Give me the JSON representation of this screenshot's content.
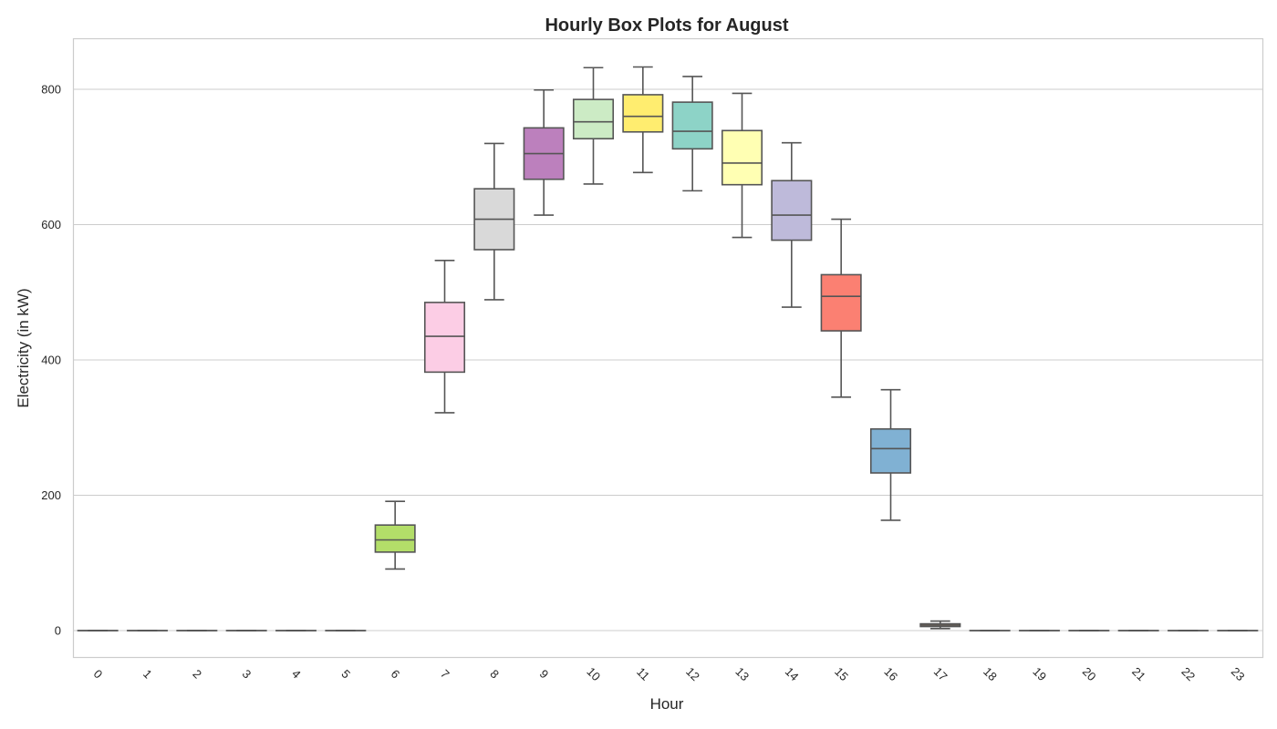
{
  "chart_data": {
    "type": "box",
    "title": "Hourly Box Plots for August",
    "xlabel": "Hour",
    "ylabel": "Electricity (in kW)",
    "ylim": [
      -40,
      875
    ],
    "yticks": [
      0,
      200,
      400,
      600,
      800
    ],
    "grid": "horizontal",
    "categories": [
      "0",
      "1",
      "2",
      "3",
      "4",
      "5",
      "6",
      "7",
      "8",
      "9",
      "10",
      "11",
      "12",
      "13",
      "14",
      "15",
      "16",
      "17",
      "18",
      "19",
      "20",
      "21",
      "22",
      "23"
    ],
    "boxes": [
      {
        "hour": "0",
        "whisker_low": 0,
        "q1": 0,
        "median": 0,
        "q3": 0,
        "whisker_high": 0,
        "color": "#8dd3c7"
      },
      {
        "hour": "1",
        "whisker_low": 0,
        "q1": 0,
        "median": 0,
        "q3": 0,
        "whisker_high": 0,
        "color": "#ffffb3"
      },
      {
        "hour": "2",
        "whisker_low": 0,
        "q1": 0,
        "median": 0,
        "q3": 0,
        "whisker_high": 0,
        "color": "#bebada"
      },
      {
        "hour": "3",
        "whisker_low": 0,
        "q1": 0,
        "median": 0,
        "q3": 0,
        "whisker_high": 0,
        "color": "#fb8072"
      },
      {
        "hour": "4",
        "whisker_low": 0,
        "q1": 0,
        "median": 0,
        "q3": 0,
        "whisker_high": 0,
        "color": "#80b1d3"
      },
      {
        "hour": "5",
        "whisker_low": 0,
        "q1": 0,
        "median": 0,
        "q3": 0,
        "whisker_high": 0,
        "color": "#fdb462"
      },
      {
        "hour": "6",
        "whisker_low": 91,
        "q1": 116,
        "median": 134,
        "q3": 156,
        "whisker_high": 191,
        "color": "#b3de69"
      },
      {
        "hour": "7",
        "whisker_low": 322,
        "q1": 382,
        "median": 435,
        "q3": 485,
        "whisker_high": 547,
        "color": "#fccde5"
      },
      {
        "hour": "8",
        "whisker_low": 489,
        "q1": 563,
        "median": 608,
        "q3": 653,
        "whisker_high": 720,
        "color": "#d9d9d9"
      },
      {
        "hour": "9",
        "whisker_low": 614,
        "q1": 667,
        "median": 705,
        "q3": 743,
        "whisker_high": 799,
        "color": "#bc80bd"
      },
      {
        "hour": "10",
        "whisker_low": 660,
        "q1": 727,
        "median": 752,
        "q3": 785,
        "whisker_high": 832,
        "color": "#ccebc5"
      },
      {
        "hour": "11",
        "whisker_low": 677,
        "q1": 737,
        "median": 760,
        "q3": 792,
        "whisker_high": 833,
        "color": "#ffed6f"
      },
      {
        "hour": "12",
        "whisker_low": 650,
        "q1": 712,
        "median": 738,
        "q3": 781,
        "whisker_high": 819,
        "color": "#8dd3c7"
      },
      {
        "hour": "13",
        "whisker_low": 581,
        "q1": 659,
        "median": 691,
        "q3": 739,
        "whisker_high": 794,
        "color": "#ffffb3"
      },
      {
        "hour": "14",
        "whisker_low": 478,
        "q1": 577,
        "median": 614,
        "q3": 665,
        "whisker_high": 721,
        "color": "#bebada"
      },
      {
        "hour": "15",
        "whisker_low": 345,
        "q1": 443,
        "median": 494,
        "q3": 526,
        "whisker_high": 608,
        "color": "#fb8072"
      },
      {
        "hour": "16",
        "whisker_low": 163,
        "q1": 233,
        "median": 269,
        "q3": 298,
        "whisker_high": 356,
        "color": "#80b1d3"
      },
      {
        "hour": "17",
        "whisker_low": 3,
        "q1": 6,
        "median": 8,
        "q3": 10,
        "whisker_high": 14,
        "color": "#fdb462"
      },
      {
        "hour": "18",
        "whisker_low": 0,
        "q1": 0,
        "median": 0,
        "q3": 0,
        "whisker_high": 0,
        "color": "#b3de69"
      },
      {
        "hour": "19",
        "whisker_low": 0,
        "q1": 0,
        "median": 0,
        "q3": 0,
        "whisker_high": 0,
        "color": "#fccde5"
      },
      {
        "hour": "20",
        "whisker_low": 0,
        "q1": 0,
        "median": 0,
        "q3": 0,
        "whisker_high": 0,
        "color": "#d9d9d9"
      },
      {
        "hour": "21",
        "whisker_low": 0,
        "q1": 0,
        "median": 0,
        "q3": 0,
        "whisker_high": 0,
        "color": "#bc80bd"
      },
      {
        "hour": "22",
        "whisker_low": 0,
        "q1": 0,
        "median": 0,
        "q3": 0,
        "whisker_high": 0,
        "color": "#ccebc5"
      },
      {
        "hour": "23",
        "whisker_low": 0,
        "q1": 0,
        "median": 0,
        "q3": 0,
        "whisker_high": 0,
        "color": "#ffed6f"
      }
    ],
    "colors": {
      "frame": "#cccccc",
      "grid": "#cccccc",
      "box_line": "#555555",
      "text": "#262626"
    }
  }
}
